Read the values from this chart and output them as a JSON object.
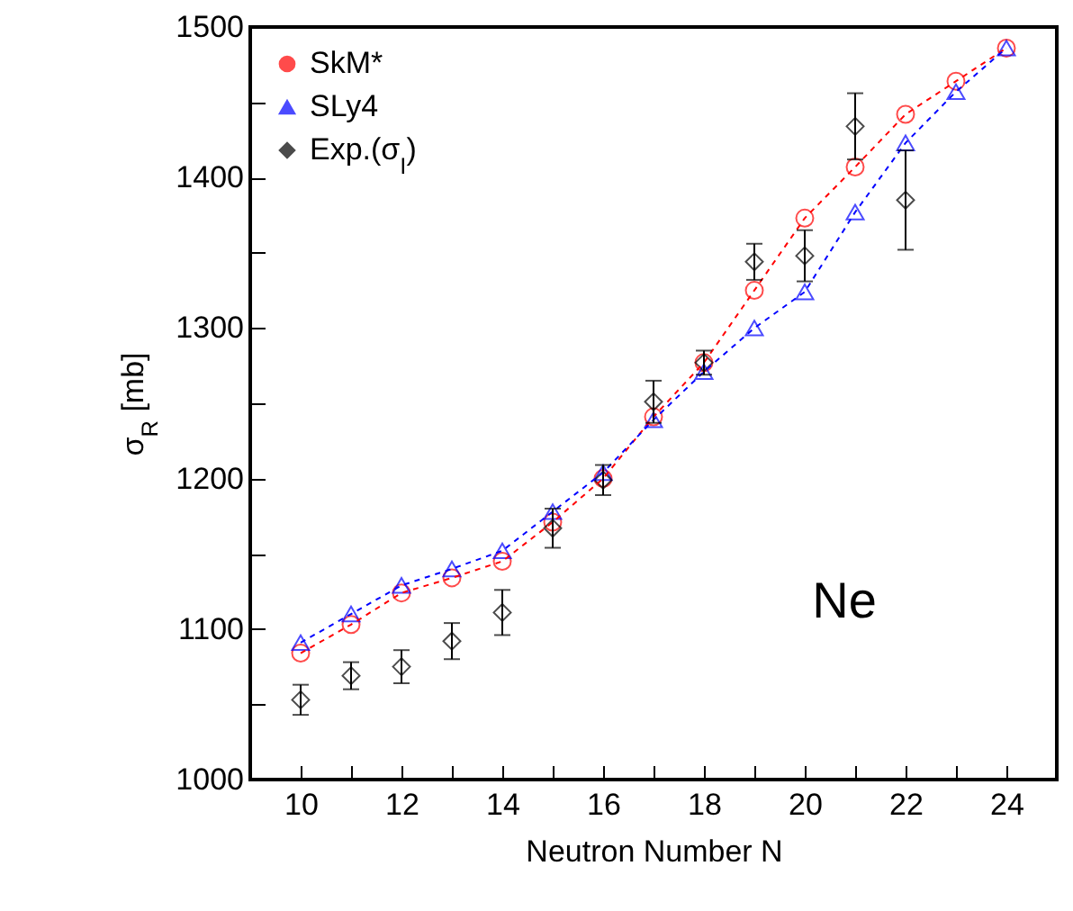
{
  "chart_data": {
    "type": "line",
    "xlabel": "Neutron Number N",
    "ylabel": "σ$_{R}$ [mb]",
    "x": [
      10,
      11,
      12,
      13,
      14,
      15,
      16,
      17,
      18,
      19,
      20,
      21,
      22,
      23,
      24
    ],
    "series": [
      {
        "name": "SkM*",
        "color": "#ff0000",
        "marker": "circle",
        "line_style": "dashed",
        "values": [
          1084,
          1103,
          1124,
          1134,
          1145,
          1171,
          1200,
          1241,
          1277,
          1325,
          1373,
          1407,
          1442,
          1464,
          1486
        ]
      },
      {
        "name": "SLy4",
        "color": "#0000ff",
        "marker": "triangle",
        "line_style": "dashed",
        "values": [
          1091,
          1110,
          1129,
          1140,
          1152,
          1178,
          1204,
          1239,
          1271,
          1300,
          1324,
          1377,
          1423,
          1457,
          1486
        ]
      },
      {
        "name": "Exp.(σ$_{I}$)",
        "type": "scatter",
        "color": "#000000",
        "marker": "diamond",
        "x": [
          10,
          11,
          12,
          13,
          14,
          15,
          16,
          17,
          18,
          19,
          20,
          21,
          22
        ],
        "values": [
          1053,
          1069,
          1075,
          1092,
          1111,
          1167,
          1199,
          1251,
          1277,
          1344,
          1348,
          1434,
          1385
        ],
        "errors": [
          10,
          9,
          11,
          12,
          15,
          13,
          10,
          14,
          8,
          12,
          17,
          22,
          33
        ]
      }
    ],
    "xlim": [
      9,
      25
    ],
    "xticks": [
      10,
      {
        "value": 11,
        "label": null
      },
      12,
      {
        "value": 13,
        "label": null
      },
      14,
      {
        "value": 15,
        "label": null
      },
      16,
      {
        "value": 17,
        "label": null
      },
      18,
      {
        "value": 19,
        "label": null
      },
      20,
      {
        "value": 21,
        "label": null
      },
      22,
      {
        "value": 23,
        "label": null
      },
      24
    ],
    "ylim": [
      1000,
      1500
    ],
    "yticks": [
      1000,
      {
        "value": 1050,
        "label": null
      },
      1100,
      {
        "value": 1150,
        "label": null
      },
      1200,
      {
        "value": 1250,
        "label": null
      },
      1300,
      {
        "value": 1350,
        "label": null
      },
      1400,
      {
        "value": 1450,
        "label": null
      },
      1500
    ],
    "annotations": [
      "Ne"
    ],
    "legend": "top left",
    "grid": false
  }
}
